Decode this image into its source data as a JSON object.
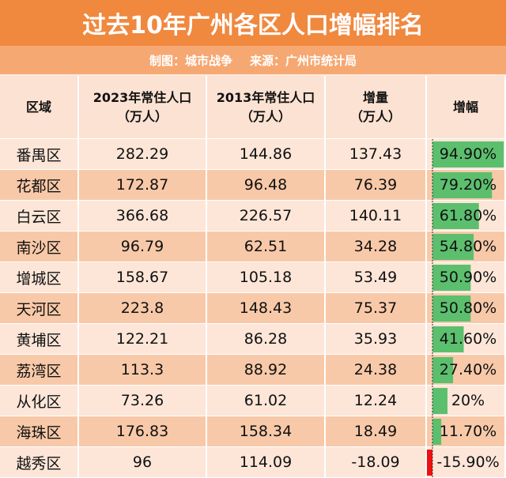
{
  "header": {
    "title": "过去10年广州各区人口增幅排名",
    "credit": "制图：城市战争",
    "source": "来源：广州市统计局"
  },
  "table": {
    "columns": [
      [
        "区域"
      ],
      [
        "2023年常住人口",
        "（万人）"
      ],
      [
        "2013年常住人口",
        "（万人）"
      ],
      [
        "增量",
        "（万人）"
      ],
      [
        "增幅"
      ]
    ],
    "rows": [
      {
        "district": "番禺区",
        "pop2023": 282.29,
        "pop2013": 144.86,
        "increase": 137.43,
        "growth": {
          "value": 94.9,
          "label": "94.90%"
        }
      },
      {
        "district": "花都区",
        "pop2023": 172.87,
        "pop2013": 96.48,
        "increase": 76.39,
        "growth": {
          "value": 79.2,
          "label": "79.20%"
        }
      },
      {
        "district": "白云区",
        "pop2023": 366.68,
        "pop2013": 226.57,
        "increase": 140.11,
        "growth": {
          "value": 61.8,
          "label": "61.80%"
        }
      },
      {
        "district": "南沙区",
        "pop2023": 96.79,
        "pop2013": 62.51,
        "increase": 34.28,
        "growth": {
          "value": 54.8,
          "label": "54.80%"
        }
      },
      {
        "district": "增城区",
        "pop2023": 158.67,
        "pop2013": 105.18,
        "increase": 53.49,
        "growth": {
          "value": 50.9,
          "label": "50.90%"
        }
      },
      {
        "district": "天河区",
        "pop2023": 223.8,
        "pop2013": 148.43,
        "increase": 75.37,
        "growth": {
          "value": 50.8,
          "label": "50.80%"
        }
      },
      {
        "district": "黄埔区",
        "pop2023": 122.21,
        "pop2013": 86.28,
        "increase": 35.93,
        "growth": {
          "value": 41.6,
          "label": "41.60%"
        }
      },
      {
        "district": "荔湾区",
        "pop2023": 113.3,
        "pop2013": 88.92,
        "increase": 24.38,
        "growth": {
          "value": 27.4,
          "label": "27.40%"
        }
      },
      {
        "district": "从化区",
        "pop2023": 73.26,
        "pop2013": 61.02,
        "increase": 12.24,
        "growth": {
          "value": 20,
          "label": "20%"
        }
      },
      {
        "district": "海珠区",
        "pop2023": 176.83,
        "pop2013": 158.34,
        "increase": 18.49,
        "growth": {
          "value": 11.7,
          "label": "11.70%"
        }
      },
      {
        "district": "越秀区",
        "pop2023": 96,
        "pop2013": 114.09,
        "increase": -18.09,
        "growth": {
          "value": -15.9,
          "label": "-15.90%"
        }
      }
    ]
  }
}
